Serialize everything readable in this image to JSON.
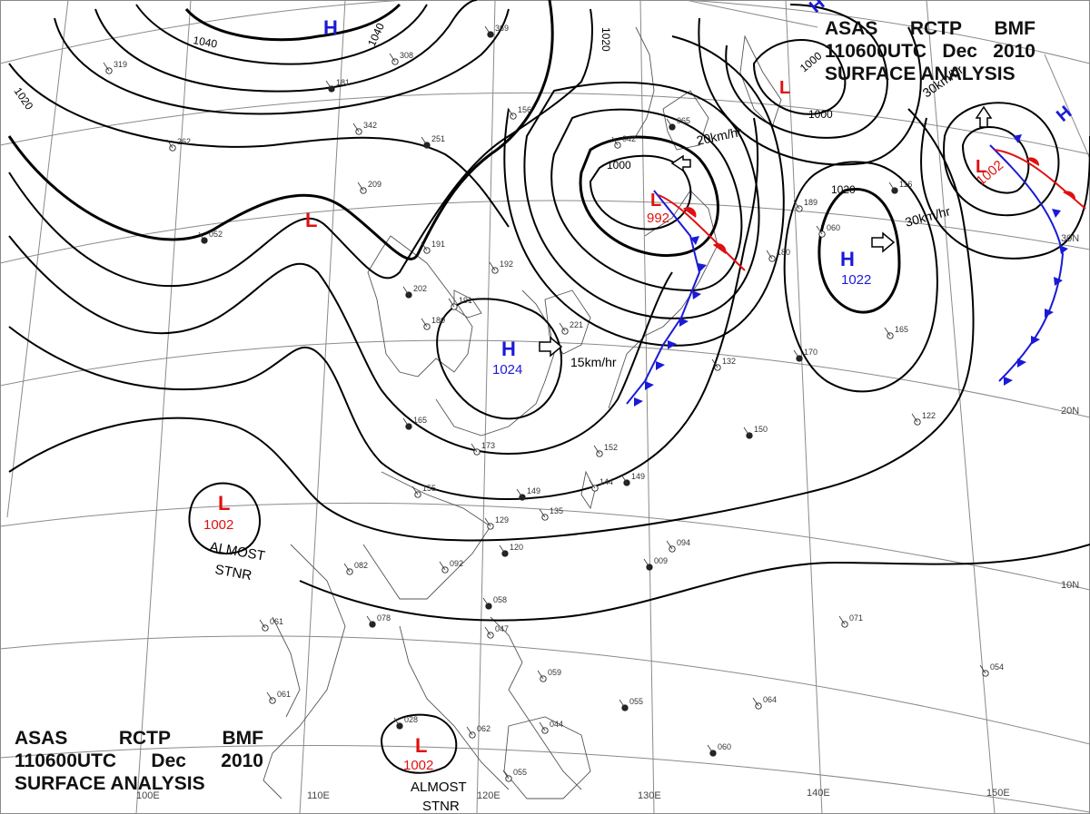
{
  "header": {
    "agency": "ASAS",
    "station": "RCTP",
    "issuer": "BMF",
    "valid_time": "110600UTC",
    "month": "Dec",
    "year": "2010",
    "product": "SURFACE ANALYSIS"
  },
  "pressure_systems": [
    {
      "type": "H",
      "pressure": "",
      "color": "#1a1ad6"
    },
    {
      "type": "H",
      "pressure": "1024",
      "color": "#1a1ad6"
    },
    {
      "type": "H",
      "pressure": "1022",
      "color": "#1a1ad6"
    },
    {
      "type": "H",
      "pressure": "",
      "color": "#1a1ad6"
    },
    {
      "type": "H",
      "pressure": "",
      "color": "#1a1ad6"
    },
    {
      "type": "L",
      "pressure": "992",
      "color": "#e01010"
    },
    {
      "type": "L",
      "pressure": "1002",
      "color": "#e01010"
    },
    {
      "type": "L",
      "pressure": "",
      "color": "#e01010"
    },
    {
      "type": "L",
      "pressure": "",
      "color": "#e01010"
    },
    {
      "type": "L",
      "pressure": "1002",
      "color": "#e01010"
    },
    {
      "type": "L",
      "pressure": "1002",
      "color": "#e01010"
    }
  ],
  "isobar_labels": [
    "1040",
    "1040",
    "1020",
    "1020",
    "1000",
    "1000",
    "1000",
    "1020"
  ],
  "movement_labels": [
    "20km/hr",
    "30km/hr",
    "15km/hr",
    "30km/hr"
  ],
  "remarks": [
    "ALMOST",
    "STNR",
    "ALMOST",
    "STNR"
  ],
  "longitude_labels": [
    "100E",
    "110E",
    "120E",
    "130E",
    "140E",
    "150E"
  ],
  "latitude_labels": [
    "30N",
    "20N",
    "10N"
  ],
  "station_plots": [
    "369",
    "308",
    "319",
    "181",
    "262",
    "342",
    "251",
    "156",
    "209",
    "052",
    "191",
    "192",
    "202",
    "191",
    "180",
    "165",
    "173",
    "155",
    "149",
    "135",
    "129",
    "120",
    "092",
    "082",
    "078",
    "061",
    "061",
    "058",
    "047",
    "059",
    "055",
    "044",
    "062",
    "028",
    "055",
    "152",
    "149",
    "144",
    "221",
    "065",
    "042",
    "132",
    "150",
    "122",
    "094",
    "009",
    "071",
    "064",
    "060",
    "054",
    "165",
    "170",
    "189",
    "180",
    "116",
    "060"
  ],
  "colors": {
    "isobar": "#000000",
    "grid": "#8a8a8a",
    "coast": "#555555",
    "high": "#1a1ad6",
    "low": "#e01010",
    "cold_front": "#1a1ad6",
    "warm_front": "#e01010"
  }
}
